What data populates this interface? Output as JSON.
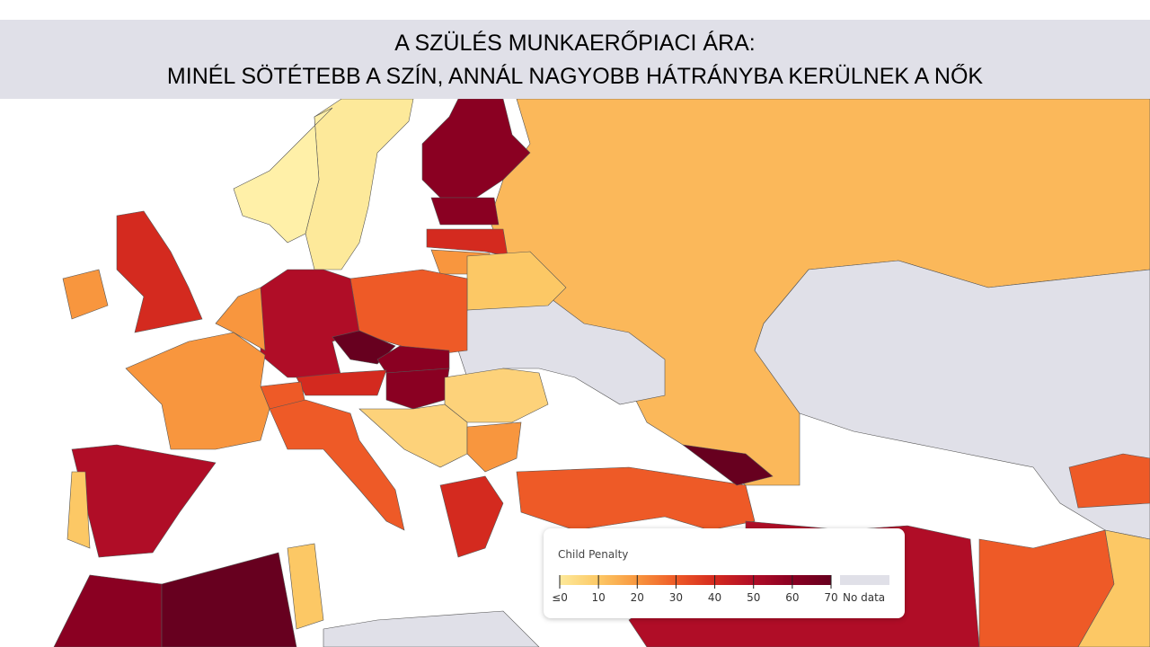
{
  "title": {
    "lines": [
      "A SZÜLÉS MUNKAERŐPIACI ÁRA:",
      "MINÉL SÖTÉTEBB A SZÍN, ANNÁL NAGYOBB HÁTRÁNYBA KERÜLNEK A NŐK"
    ]
  },
  "legend": {
    "title": "Child Penalty",
    "range": [
      0,
      70
    ],
    "ticks": [
      {
        "value": 0,
        "label": "≤0"
      },
      10,
      20,
      30,
      40,
      50,
      60,
      70
    ],
    "colors": [
      "#fde99a",
      "#fcc865",
      "#f8963e",
      "#ee5a27",
      "#d42a1f",
      "#b00d27",
      "#8a0022",
      "#67001f"
    ],
    "no_data_label": "No data",
    "no_data_color": "#e0e0e8"
  }
}
